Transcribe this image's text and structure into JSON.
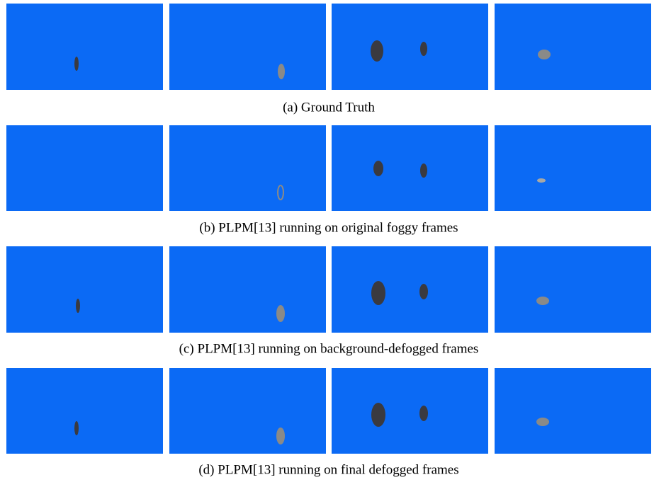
{
  "figure": {
    "captions": [
      "(a) Ground Truth",
      "(b) PLPM[13] running on original foggy frames",
      "(c) PLPM[13] running on background-defogged frames",
      "(d) PLPM[13] running on final defogged frames"
    ]
  }
}
